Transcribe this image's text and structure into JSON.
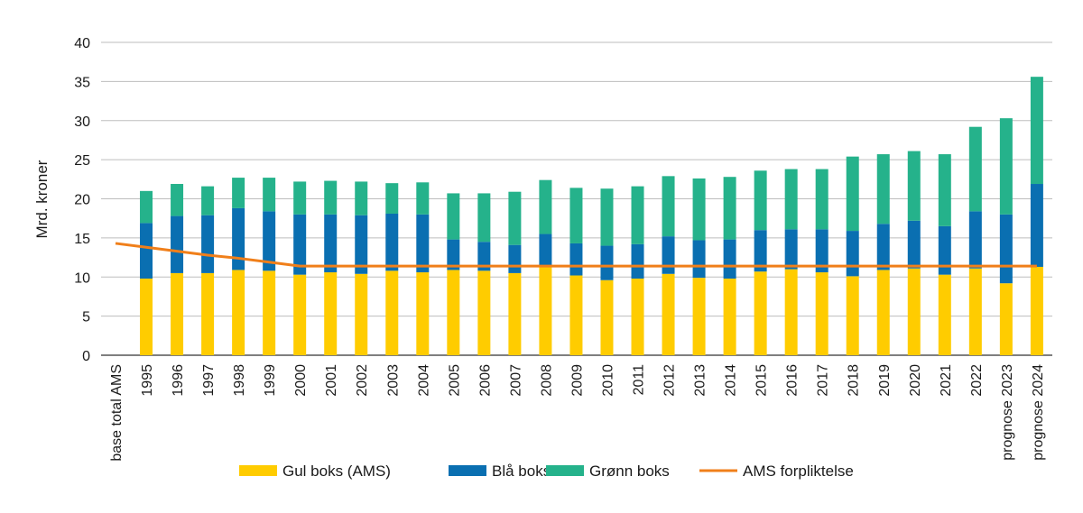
{
  "chart_data": {
    "type": "bar",
    "stacked": true,
    "ylabel": "Mrd. kroner",
    "ylim": [
      0,
      40
    ],
    "yticks": [
      0,
      5,
      10,
      15,
      20,
      25,
      30,
      35,
      40
    ],
    "grid": true,
    "categories": [
      "base total AMS",
      "1995",
      "1996",
      "1997",
      "1998",
      "1999",
      "2000",
      "2001",
      "2002",
      "2003",
      "2004",
      "2005",
      "2006",
      "2007",
      "2008",
      "2009",
      "2010",
      "2011",
      "2012",
      "2013",
      "2014",
      "2015",
      "2016",
      "2017",
      "2018",
      "2019",
      "2020",
      "2021",
      "2022",
      "prognose 2023",
      "prognose 2024"
    ],
    "series": [
      {
        "name": "Gul boks (AMS)",
        "color": "#FFCC00",
        "kind": "bar",
        "values": [
          null,
          9.8,
          10.5,
          10.5,
          10.9,
          10.8,
          10.3,
          10.6,
          10.4,
          10.8,
          10.6,
          10.9,
          10.8,
          10.5,
          11.5,
          10.2,
          9.6,
          9.8,
          10.4,
          9.9,
          9.8,
          10.7,
          11.0,
          10.6,
          10.1,
          10.9,
          11.1,
          10.3,
          11.1,
          9.2,
          11.3
        ]
      },
      {
        "name": "Blå boks",
        "color": "#0A6FB1",
        "kind": "bar",
        "values": [
          null,
          7.1,
          7.3,
          7.4,
          7.9,
          7.6,
          7.7,
          7.4,
          7.5,
          7.3,
          7.4,
          3.9,
          3.7,
          3.6,
          4.0,
          4.1,
          4.4,
          4.4,
          4.8,
          4.8,
          5.0,
          5.3,
          5.1,
          5.5,
          5.8,
          5.9,
          6.1,
          6.2,
          7.3,
          8.8,
          10.6
        ]
      },
      {
        "name": "Grønn boks",
        "color": "#25B28B",
        "kind": "bar",
        "values": [
          null,
          4.1,
          4.1,
          3.7,
          3.9,
          4.3,
          4.2,
          4.3,
          4.3,
          3.9,
          4.1,
          5.9,
          6.2,
          6.8,
          6.9,
          7.1,
          7.3,
          7.4,
          7.7,
          7.9,
          8.0,
          7.6,
          7.7,
          7.7,
          9.5,
          8.9,
          8.9,
          9.2,
          10.8,
          12.3,
          13.7
        ]
      },
      {
        "name": "AMS forpliktelse",
        "color": "#F07F1A",
        "kind": "line",
        "values": [
          14.3,
          13.8,
          13.3,
          12.8,
          12.4,
          11.9,
          11.4,
          11.4,
          11.4,
          11.4,
          11.4,
          11.4,
          11.4,
          11.4,
          11.4,
          11.4,
          11.4,
          11.4,
          11.4,
          11.4,
          11.4,
          11.4,
          11.4,
          11.4,
          11.4,
          11.4,
          11.4,
          11.4,
          11.4,
          11.4,
          11.4
        ]
      }
    ],
    "legend_position": "bottom-center"
  }
}
